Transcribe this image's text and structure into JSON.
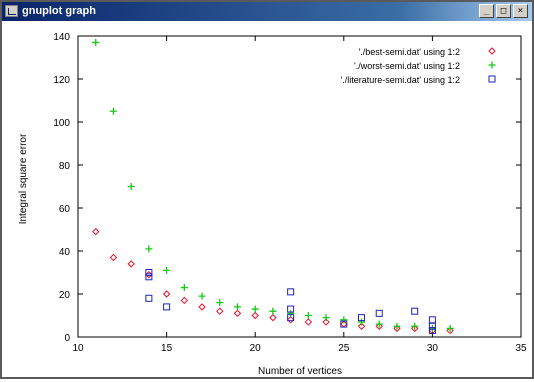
{
  "window": {
    "title": "gnuplot graph",
    "controls": [
      "_",
      "□",
      "×"
    ]
  },
  "chart_data": {
    "type": "scatter",
    "title": "",
    "xlabel": "Number of vertices",
    "ylabel": "Integral square error",
    "xlim": [
      10,
      35
    ],
    "ylim": [
      0,
      140
    ],
    "xticks": [
      10,
      15,
      20,
      25,
      30,
      35
    ],
    "yticks": [
      0,
      20,
      40,
      60,
      80,
      100,
      120,
      140
    ],
    "grid": false,
    "legend_position": "top-right",
    "series": [
      {
        "name": "'./best-semi.dat' using 1:2",
        "color": "#e8112d",
        "marker": "diamond",
        "x": [
          11,
          12,
          13,
          14,
          15,
          16,
          17,
          18,
          19,
          20,
          21,
          22,
          23,
          24,
          25,
          26,
          27,
          28,
          29,
          30,
          31
        ],
        "y": [
          49,
          37,
          34,
          29,
          20,
          17,
          14,
          12,
          11,
          10,
          9,
          8,
          7,
          7,
          6,
          5,
          5,
          4,
          4,
          3,
          3
        ]
      },
      {
        "name": "'./worst-semi.dat' using 1:2",
        "color": "#14c814",
        "marker": "plus",
        "x": [
          11,
          12,
          13,
          14,
          15,
          16,
          17,
          18,
          19,
          20,
          21,
          22,
          23,
          24,
          25,
          26,
          27,
          28,
          29,
          30,
          31
        ],
        "y": [
          137,
          105,
          70,
          41,
          31,
          23,
          19,
          16,
          14,
          13,
          12,
          11,
          10,
          9,
          8,
          7,
          6,
          5,
          5,
          4,
          4
        ]
      },
      {
        "name": "'./literature-semi.dat' using 1:2",
        "color": "#2020c0",
        "marker": "square",
        "x": [
          14,
          14,
          14,
          15,
          22,
          22,
          22,
          25,
          26,
          27,
          29,
          30,
          30,
          30
        ],
        "y": [
          30,
          28,
          18,
          14,
          21,
          13,
          9,
          6,
          9,
          11,
          12,
          8,
          5,
          3
        ]
      }
    ]
  }
}
